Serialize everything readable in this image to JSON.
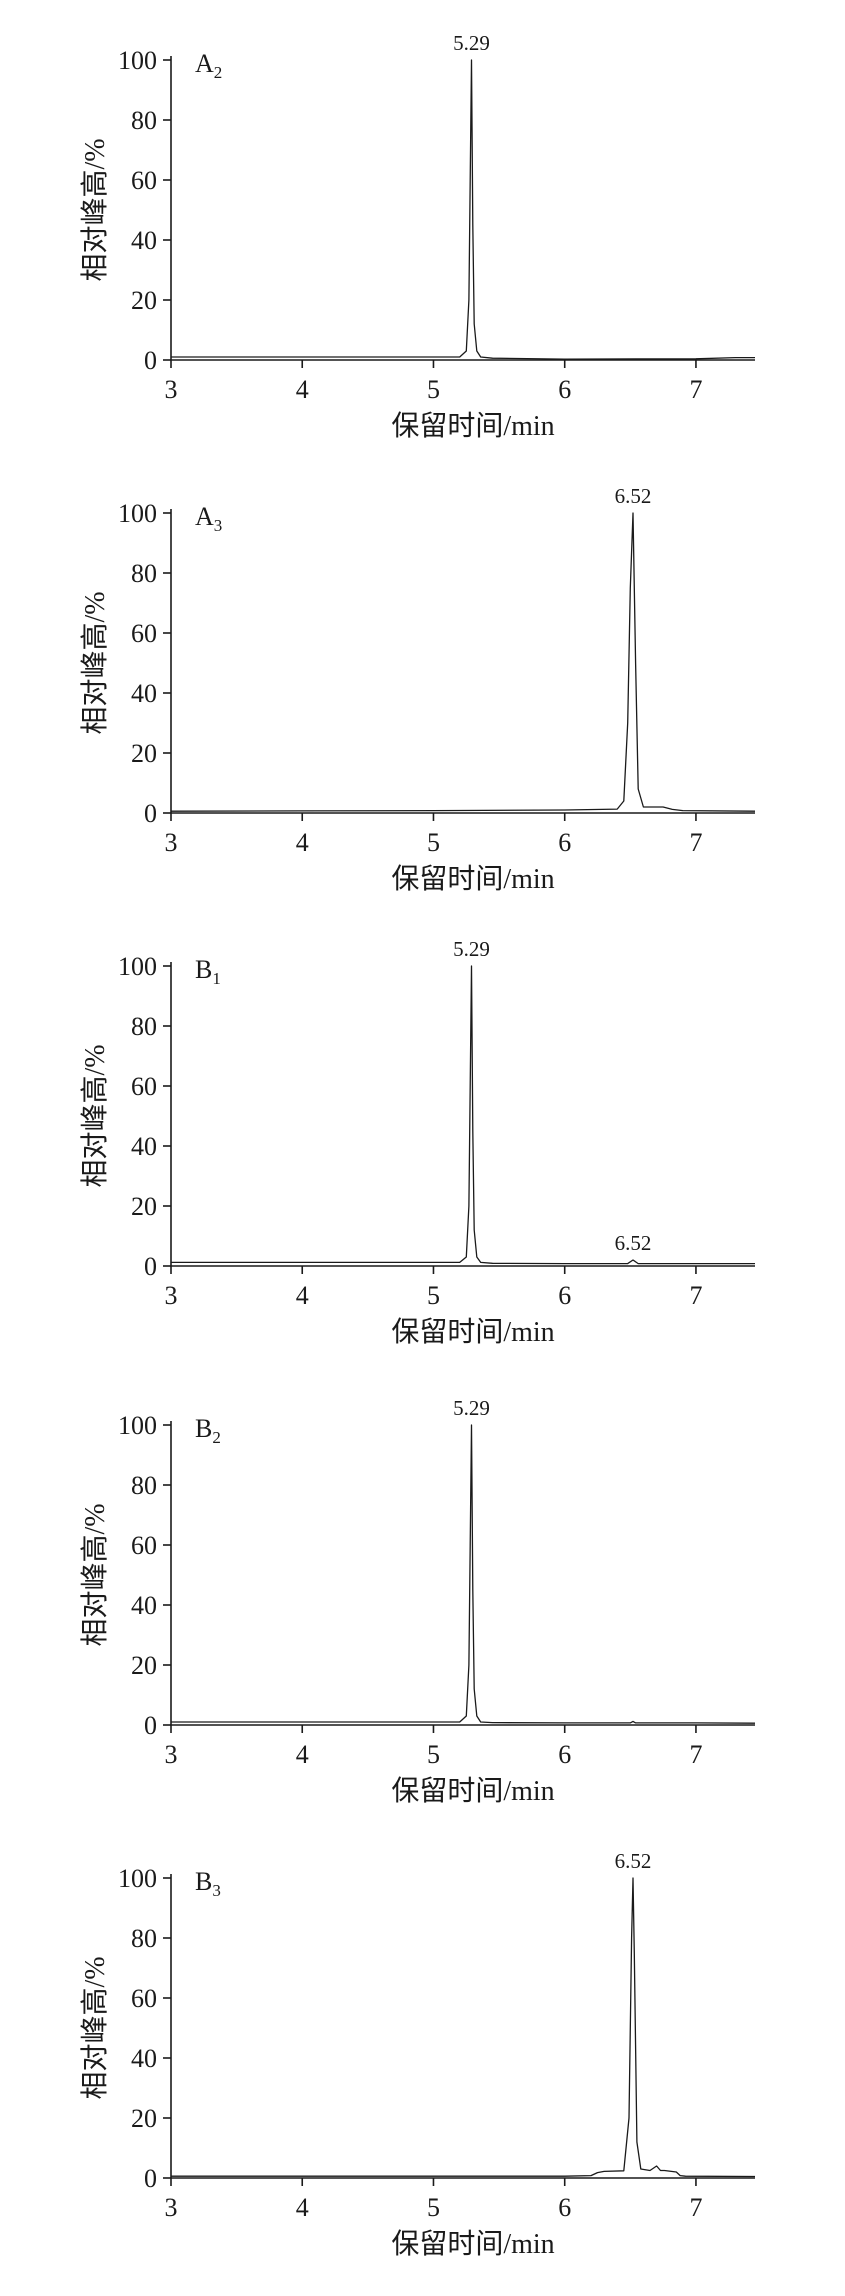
{
  "chart_data": [
    {
      "type": "line",
      "label": "A",
      "label_sub": "2",
      "xlabel": "保留时间/min",
      "ylabel": "相对峰高/%",
      "xlim": [
        3,
        7.45
      ],
      "ylim": [
        0,
        100
      ],
      "x_ticks": [
        "3",
        "4",
        "5",
        "6",
        "7"
      ],
      "y_ticks": [
        "0",
        "20",
        "40",
        "60",
        "80",
        "100"
      ],
      "peaks": [
        {
          "x": 5.29,
          "label": "5.29"
        }
      ],
      "series": [
        {
          "x": [
            3,
            4,
            5,
            5.2,
            5.25,
            5.27,
            5.28,
            5.29,
            5.3,
            5.31,
            5.33,
            5.36,
            5.45,
            6,
            7,
            7.3,
            7.45
          ],
          "y": [
            1,
            1,
            1,
            1,
            3,
            20,
            60,
            100,
            45,
            12,
            3,
            1,
            0.6,
            0.3,
            0.4,
            0.8,
            0.8
          ]
        }
      ]
    },
    {
      "type": "line",
      "label": "A",
      "label_sub": "3",
      "xlabel": "保留时间/min",
      "ylabel": "相对峰高/%",
      "xlim": [
        3,
        7.45
      ],
      "ylim": [
        0,
        100
      ],
      "x_ticks": [
        "3",
        "4",
        "5",
        "6",
        "7"
      ],
      "y_ticks": [
        "0",
        "20",
        "40",
        "60",
        "80",
        "100"
      ],
      "peaks": [
        {
          "x": 6.52,
          "label": "6.52"
        }
      ],
      "series": [
        {
          "x": [
            3,
            4,
            5,
            6,
            6.4,
            6.45,
            6.48,
            6.5,
            6.52,
            6.54,
            6.56,
            6.6,
            6.75,
            6.82,
            6.9,
            7.45
          ],
          "y": [
            0.6,
            0.7,
            0.8,
            1,
            1.3,
            4,
            30,
            75,
            100,
            50,
            8,
            2,
            2,
            1.2,
            0.8,
            0.6
          ]
        }
      ]
    },
    {
      "type": "line",
      "label": "B",
      "label_sub": "1",
      "xlabel": "保留时间/min",
      "ylabel": "相对峰高/%",
      "xlim": [
        3,
        7.45
      ],
      "ylim": [
        0,
        100
      ],
      "x_ticks": [
        "3",
        "4",
        "5",
        "6",
        "7"
      ],
      "y_ticks": [
        "0",
        "20",
        "40",
        "60",
        "80",
        "100"
      ],
      "peaks": [
        {
          "x": 5.29,
          "label": "5.29"
        },
        {
          "x": 6.52,
          "label": "6.52"
        }
      ],
      "series": [
        {
          "x": [
            3,
            4,
            5,
            5.2,
            5.25,
            5.27,
            5.28,
            5.29,
            5.3,
            5.31,
            5.33,
            5.36,
            5.45,
            6,
            6.48,
            6.52,
            6.56,
            7,
            7.45
          ],
          "y": [
            1.2,
            1.2,
            1.2,
            1.2,
            3,
            20,
            60,
            100,
            45,
            12,
            3,
            1.2,
            0.9,
            0.8,
            0.8,
            2,
            0.8,
            0.8,
            0.8
          ]
        }
      ]
    },
    {
      "type": "line",
      "label": "B",
      "label_sub": "2",
      "xlabel": "保留时间/min",
      "ylabel": "相对峰高/%",
      "xlim": [
        3,
        7.45
      ],
      "ylim": [
        0,
        100
      ],
      "x_ticks": [
        "3",
        "4",
        "5",
        "6",
        "7"
      ],
      "y_ticks": [
        "0",
        "20",
        "40",
        "60",
        "80",
        "100"
      ],
      "peaks": [
        {
          "x": 5.29,
          "label": "5.29"
        }
      ],
      "series": [
        {
          "x": [
            3,
            4,
            5,
            5.2,
            5.25,
            5.27,
            5.28,
            5.29,
            5.3,
            5.31,
            5.33,
            5.36,
            5.45,
            6,
            6.5,
            6.52,
            6.54,
            7,
            7.45
          ],
          "y": [
            1,
            1,
            1,
            1,
            3,
            20,
            60,
            100,
            45,
            12,
            3,
            1,
            0.8,
            0.7,
            0.7,
            1.2,
            0.7,
            0.7,
            0.6
          ]
        }
      ]
    },
    {
      "type": "line",
      "label": "B",
      "label_sub": "3",
      "xlabel": "保留时间/min",
      "ylabel": "相对峰高/%",
      "xlim": [
        3,
        7.45
      ],
      "ylim": [
        0,
        100
      ],
      "x_ticks": [
        "3",
        "4",
        "5",
        "6",
        "7"
      ],
      "y_ticks": [
        "0",
        "20",
        "40",
        "60",
        "80",
        "100"
      ],
      "peaks": [
        {
          "x": 6.52,
          "label": "6.52"
        }
      ],
      "series": [
        {
          "x": [
            3,
            4,
            5,
            6,
            6.2,
            6.25,
            6.3,
            6.45,
            6.49,
            6.51,
            6.52,
            6.53,
            6.55,
            6.58,
            6.65,
            6.7,
            6.73,
            6.76,
            6.85,
            6.88,
            6.92,
            7.45
          ],
          "y": [
            0.6,
            0.6,
            0.6,
            0.6,
            0.8,
            1.8,
            2.2,
            2.4,
            20,
            80,
            100,
            75,
            12,
            3,
            2.5,
            4,
            2.5,
            2.5,
            2,
            0.8,
            0.6,
            0.5
          ]
        }
      ]
    }
  ]
}
